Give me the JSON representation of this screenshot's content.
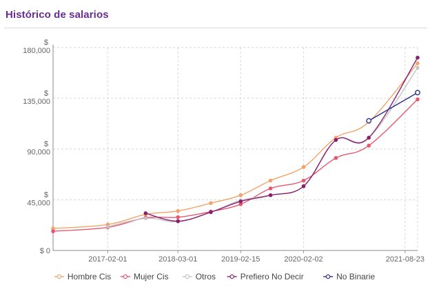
{
  "header": {
    "title": "Histórico de salarios"
  },
  "chart_data": {
    "type": "line",
    "title": "Histórico de salarios",
    "xlabel": "",
    "ylabel": "",
    "y_currency_symbol": "$",
    "ylim": [
      0,
      180000
    ],
    "y_ticks": [
      {
        "value": 0,
        "label": "$ 0"
      },
      {
        "value": 45000,
        "label": "$ 45,000"
      },
      {
        "value": 90000,
        "label": "$ 90,000"
      },
      {
        "value": 135000,
        "label": "$ 135,000"
      },
      {
        "value": 180000,
        "label": "$ 180,000"
      }
    ],
    "xlim": [
      "2016-04-01",
      "2021-11-01"
    ],
    "x_ticks": [
      "2017-02-01",
      "2018-03-01",
      "2019-02-15",
      "2020-02-02",
      "2021-08-23"
    ],
    "grid": true,
    "legend_position": "bottom",
    "series": [
      {
        "name": "Hombre Cis",
        "color": "#f2a36b",
        "points": [
          {
            "x": "2016-04-01",
            "y": 19500
          },
          {
            "x": "2017-02-01",
            "y": 23000
          },
          {
            "x": "2017-09-01",
            "y": 32000
          },
          {
            "x": "2018-03-01",
            "y": 35000
          },
          {
            "x": "2018-09-01",
            "y": 42000
          },
          {
            "x": "2019-02-15",
            "y": 49000
          },
          {
            "x": "2019-08-01",
            "y": 62000
          },
          {
            "x": "2020-02-02",
            "y": 74000
          },
          {
            "x": "2020-08-01",
            "y": 100000
          },
          {
            "x": "2021-02-01",
            "y": 114000
          },
          {
            "x": "2021-11-01",
            "y": 166000
          }
        ]
      },
      {
        "name": "Mujer Cis",
        "color": "#e8576e",
        "points": [
          {
            "x": "2016-04-01",
            "y": 17000
          },
          {
            "x": "2017-02-01",
            "y": 20500
          },
          {
            "x": "2017-09-01",
            "y": 29000
          },
          {
            "x": "2018-03-01",
            "y": 29500
          },
          {
            "x": "2018-09-01",
            "y": 34500
          },
          {
            "x": "2019-02-15",
            "y": 41000
          },
          {
            "x": "2019-08-01",
            "y": 55000
          },
          {
            "x": "2020-02-02",
            "y": 62000
          },
          {
            "x": "2020-08-01",
            "y": 82000
          },
          {
            "x": "2021-02-01",
            "y": 93000
          },
          {
            "x": "2021-11-01",
            "y": 134000
          }
        ]
      },
      {
        "name": "Otros",
        "color": "#c4c4c4",
        "points": [
          {
            "x": "2017-02-01",
            "y": 21000
          },
          {
            "x": "2017-09-01",
            "y": 28500
          },
          {
            "x": "2018-03-01",
            "y": 25500
          },
          {
            "x": "2018-09-01",
            "y": 34000
          },
          {
            "x": "2019-02-15",
            "y": 44500
          },
          {
            "x": "2019-08-01",
            "y": 49000
          },
          {
            "x": "2020-02-02",
            "y": 57000
          },
          {
            "x": "2020-08-01",
            "y": 98000
          },
          {
            "x": "2021-02-01",
            "y": 100000
          },
          {
            "x": "2021-11-01",
            "y": 162000
          }
        ]
      },
      {
        "name": "Prefiero No Decir",
        "color": "#8a1f6e",
        "points": [
          {
            "x": "2017-09-01",
            "y": 33000
          },
          {
            "x": "2018-03-01",
            "y": 26000
          },
          {
            "x": "2018-09-01",
            "y": 34000
          },
          {
            "x": "2019-02-15",
            "y": 43500
          },
          {
            "x": "2019-08-01",
            "y": 49000
          },
          {
            "x": "2020-02-02",
            "y": 57000
          },
          {
            "x": "2020-08-01",
            "y": 98000
          },
          {
            "x": "2021-02-01",
            "y": 100000
          },
          {
            "x": "2021-11-01",
            "y": 171000
          }
        ]
      },
      {
        "name": "No Binarie",
        "color": "#2b2f8c",
        "points": [
          {
            "x": "2021-02-01",
            "y": 115000
          },
          {
            "x": "2021-11-01",
            "y": 140000
          }
        ]
      }
    ]
  }
}
